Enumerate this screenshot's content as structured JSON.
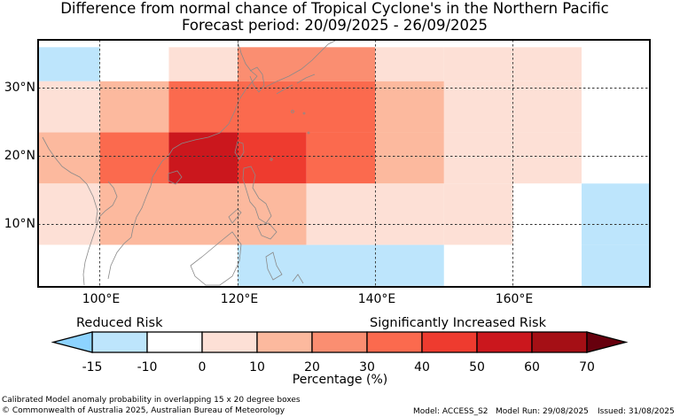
{
  "title_line1": "Difference from normal chance of Tropical Cyclone's in the Northern Pacific",
  "title_line2": "Forecast period: 20/09/2025 - 26/09/2025",
  "x_ticks": [
    "100°E",
    "120°E",
    "140°E",
    "160°E"
  ],
  "y_ticks": [
    "30°N",
    "20°N",
    "10°N"
  ],
  "colorbar": {
    "left_label": "Reduced Risk",
    "right_label": "Significantly Increased Risk",
    "units_label": "Percentage (%)",
    "ticks": [
      "-15",
      "-10",
      "0",
      "10",
      "20",
      "30",
      "40",
      "50",
      "60",
      "70"
    ],
    "colors": [
      "#8dd3ff",
      "#bde5fc",
      "#ffffff",
      "#fde0d6",
      "#fcb99e",
      "#fa8e71",
      "#fb6a4e",
      "#ee3b2f",
      "#cb171d",
      "#a50f15",
      "#67000d"
    ]
  },
  "grid_cells": [
    {
      "lon": [
        90,
        100
      ],
      "lat": [
        31,
        36
      ],
      "value": -15
    },
    {
      "lon": [
        100,
        110
      ],
      "lat": [
        31,
        36
      ],
      "value": -10
    },
    {
      "lon": [
        110,
        120
      ],
      "lat": [
        31,
        36
      ],
      "value": 5
    },
    {
      "lon": [
        120,
        140
      ],
      "lat": [
        31,
        36
      ],
      "value": 25
    },
    {
      "lon": [
        140,
        150
      ],
      "lat": [
        31,
        36
      ],
      "value": 5
    },
    {
      "lon": [
        150,
        170
      ],
      "lat": [
        31,
        36
      ],
      "value": 0
    },
    {
      "lon": [
        170,
        180
      ],
      "lat": [
        31,
        36
      ],
      "value": -10
    },
    {
      "lon": [
        90,
        100
      ],
      "lat": [
        23.5,
        31
      ],
      "value": 0
    },
    {
      "lon": [
        100,
        110
      ],
      "lat": [
        23.5,
        31
      ],
      "value": 15
    },
    {
      "lon": [
        110,
        140
      ],
      "lat": [
        23.5,
        31
      ],
      "value": 35
    },
    {
      "lon": [
        140,
        150
      ],
      "lat": [
        23.5,
        31
      ],
      "value": 15
    },
    {
      "lon": [
        150,
        170
      ],
      "lat": [
        23.5,
        31
      ],
      "value": 0
    },
    {
      "lon": [
        170,
        180
      ],
      "lat": [
        23.5,
        31
      ],
      "value": -10
    },
    {
      "lon": [
        90,
        100
      ],
      "lat": [
        16,
        23.5
      ],
      "value": 15
    },
    {
      "lon": [
        100,
        110
      ],
      "lat": [
        16,
        23.5
      ],
      "value": 35
    },
    {
      "lon": [
        110,
        120
      ],
      "lat": [
        16,
        23.5
      ],
      "value": 55
    },
    {
      "lon": [
        120,
        130
      ],
      "lat": [
        16,
        23.5
      ],
      "value": 45
    },
    {
      "lon": [
        130,
        140
      ],
      "lat": [
        16,
        23.5
      ],
      "value": 35
    },
    {
      "lon": [
        140,
        150
      ],
      "lat": [
        16,
        23.5
      ],
      "value": 15
    },
    {
      "lon": [
        150,
        170
      ],
      "lat": [
        16,
        23.5
      ],
      "value": 0
    },
    {
      "lon": [
        170,
        180
      ],
      "lat": [
        16,
        23.5
      ],
      "value": -10
    },
    {
      "lon": [
        90,
        100
      ],
      "lat": [
        7,
        16
      ],
      "value": 0
    },
    {
      "lon": [
        100,
        130
      ],
      "lat": [
        7,
        16
      ],
      "value": 15
    },
    {
      "lon": [
        130,
        140
      ],
      "lat": [
        7,
        16
      ],
      "value": 5
    },
    {
      "lon": [
        140,
        150
      ],
      "lat": [
        7,
        16
      ],
      "value": 0
    },
    {
      "lon": [
        150,
        160
      ],
      "lat": [
        7,
        16
      ],
      "value": 0
    },
    {
      "lon": [
        160,
        170
      ],
      "lat": [
        7,
        16
      ],
      "value": -10
    },
    {
      "lon": [
        170,
        180
      ],
      "lat": [
        7,
        16
      ],
      "value": -15
    },
    {
      "lon": [
        90,
        120
      ],
      "lat": [
        1,
        7
      ],
      "value": -10
    },
    {
      "lon": [
        120,
        150
      ],
      "lat": [
        1,
        7
      ],
      "value": -15
    },
    {
      "lon": [
        150,
        170
      ],
      "lat": [
        1,
        7
      ],
      "value": -10
    },
    {
      "lon": [
        170,
        180
      ],
      "lat": [
        1,
        7
      ],
      "value": -15
    }
  ],
  "footer": {
    "description": "Calibrated Model anomaly probability in overlapping 15 x 20 degree boxes",
    "copyright": "© Commonwealth of Australia 2025, Australian Bureau of Meteorology",
    "model": "Model: ACCESS_S2",
    "model_run": "Model Run: 29/08/2025",
    "issued": "Issued: 31/08/2025"
  }
}
